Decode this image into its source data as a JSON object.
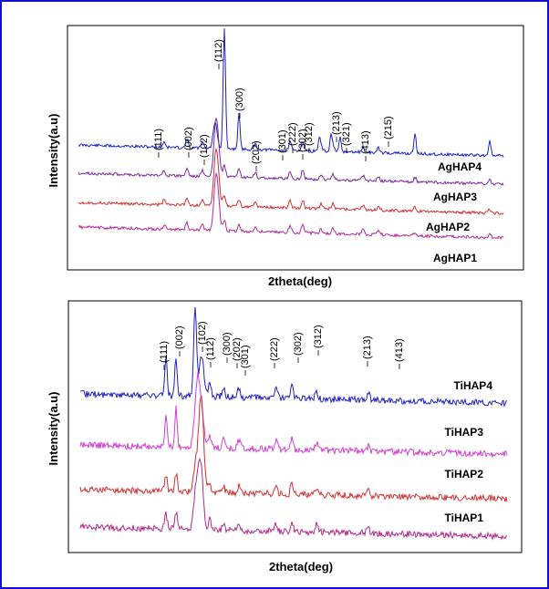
{
  "chart_data": [
    {
      "type": "line",
      "xlabel": "2theta(deg)",
      "ylabel": "Intensity(a.u)",
      "grid": false,
      "series": [
        {
          "name": "AgHAP4",
          "color": "#2020c0"
        },
        {
          "name": "AgHAP3",
          "color": "#7a2a9a"
        },
        {
          "name": "AgHAP2",
          "color": "#d03030"
        },
        {
          "name": "AgHAP1",
          "color": "#b02a9a"
        }
      ],
      "peak_labels": [
        "(111)",
        "(002)",
        "(102)",
        "(112)",
        "(300)",
        "(202)",
        "(301)",
        "(222)",
        "(302)",
        "(312)",
        "(213)",
        "(321)",
        "(413)",
        "(215)"
      ]
    },
    {
      "type": "line",
      "xlabel": "2theta(deg)",
      "ylabel": "Intensity(a.u)",
      "grid": false,
      "series": [
        {
          "name": "TiHAP4",
          "color": "#2020c0"
        },
        {
          "name": "TiHAP3",
          "color": "#d040d0"
        },
        {
          "name": "TiHAP2",
          "color": "#d03030"
        },
        {
          "name": "TiHAP1",
          "color": "#b02a8a"
        }
      ],
      "peak_labels": [
        "(111)",
        "(002)",
        "(102)",
        "(112)",
        "(300)",
        "(202)",
        "(301)",
        "(222)",
        "(302)",
        "(312)",
        "(213)",
        "(413)"
      ]
    }
  ]
}
